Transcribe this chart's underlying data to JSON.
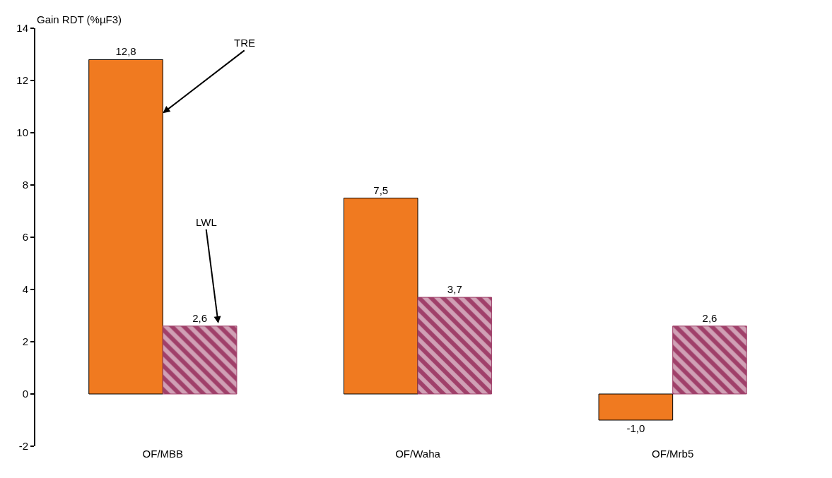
{
  "chart_data": {
    "type": "bar",
    "ylabel": "Gain RDT (%µF3)",
    "categories": [
      "OF/MBB",
      "OF/Waha",
      "OF/Mrb5"
    ],
    "series": [
      {
        "name": "TRE",
        "color": "#f07a20",
        "values": [
          12.8,
          7.5,
          -1.0
        ],
        "value_labels": [
          "12,8",
          "7,5",
          "-1,0"
        ]
      },
      {
        "name": "LWL",
        "color": "#a0406a",
        "values": [
          2.6,
          3.7,
          2.6
        ],
        "value_labels": [
          "2,6",
          "3,7",
          "2,6"
        ]
      }
    ],
    "ylim": [
      -2,
      14
    ],
    "yticks": [
      -2,
      0,
      2,
      4,
      6,
      8,
      10,
      12,
      14
    ],
    "grid": false,
    "legend": false
  }
}
